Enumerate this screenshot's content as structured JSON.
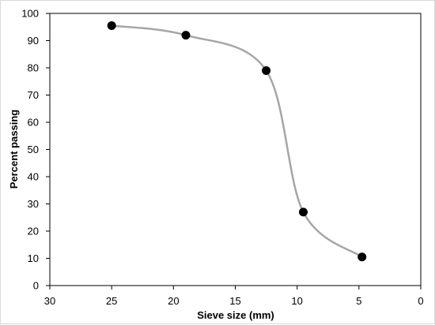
{
  "chart_data": {
    "type": "scatter",
    "title": "",
    "xlabel": "Sieve size (mm)",
    "ylabel": "Percent passing",
    "x_reversed": true,
    "xlim": [
      30,
      0
    ],
    "ylim": [
      0,
      100
    ],
    "x_ticks": [
      30,
      25,
      20,
      15,
      10,
      5,
      0
    ],
    "y_ticks": [
      0,
      10,
      20,
      30,
      40,
      50,
      60,
      70,
      80,
      90,
      100
    ],
    "grid": "none",
    "legend": "none",
    "series": [
      {
        "marker": "filled-circle",
        "line": "smooth",
        "marker_color": "#000000",
        "line_color": "#a6a6a6",
        "points": [
          {
            "x": 25,
            "y": 95.5
          },
          {
            "x": 19,
            "y": 92
          },
          {
            "x": 12.5,
            "y": 79
          },
          {
            "x": 9.5,
            "y": 27
          },
          {
            "x": 4.75,
            "y": 10.5
          }
        ]
      }
    ]
  }
}
